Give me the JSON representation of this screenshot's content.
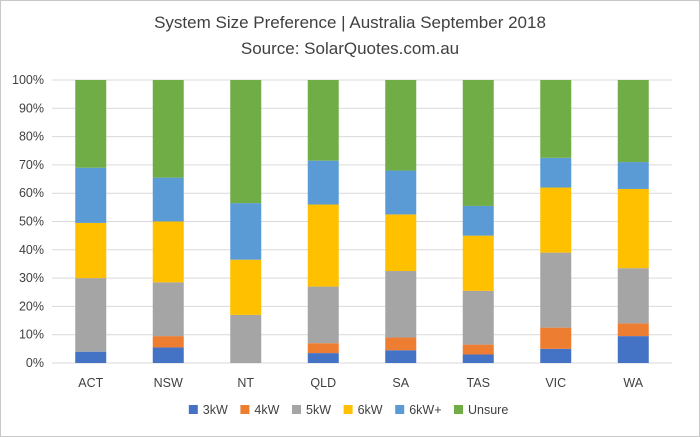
{
  "chart_data": {
    "type": "bar",
    "stacked": true,
    "title": "System Size Preference  | Australia September 2018",
    "subtitle": "Source: SolarQuotes.com.au",
    "xlabel": "",
    "ylabel": "",
    "ylim": [
      0,
      100
    ],
    "yticks": [
      "0%",
      "10%",
      "20%",
      "30%",
      "40%",
      "50%",
      "60%",
      "70%",
      "80%",
      "90%",
      "100%"
    ],
    "grid": true,
    "legend_position": "bottom",
    "categories": [
      "ACT",
      "NSW",
      "NT",
      "QLD",
      "SA",
      "TAS",
      "VIC",
      "WA"
    ],
    "series": [
      {
        "name": "3kW",
        "color": "#4472c4",
        "values": [
          4,
          5.5,
          0,
          3.5,
          4.5,
          3,
          5,
          9.5
        ]
      },
      {
        "name": "4kW",
        "color": "#ed7d31",
        "values": [
          0,
          4,
          0,
          3.5,
          4.5,
          3.5,
          7.5,
          4.5
        ]
      },
      {
        "name": "5kW",
        "color": "#a5a5a5",
        "values": [
          26,
          19,
          17,
          20,
          23.5,
          19,
          26.5,
          19.5
        ]
      },
      {
        "name": "6kW",
        "color": "#ffc000",
        "values": [
          19.5,
          21.5,
          19.5,
          29,
          20,
          19.5,
          23,
          28
        ]
      },
      {
        "name": "6kW+",
        "color": "#5b9bd5",
        "values": [
          19.5,
          15.5,
          20,
          15.5,
          15.5,
          10.5,
          10.5,
          9.5
        ]
      },
      {
        "name": "Unsure",
        "color": "#70ad47",
        "values": [
          31,
          34.5,
          43.5,
          28.5,
          32,
          44.5,
          27.5,
          29
        ]
      }
    ]
  }
}
